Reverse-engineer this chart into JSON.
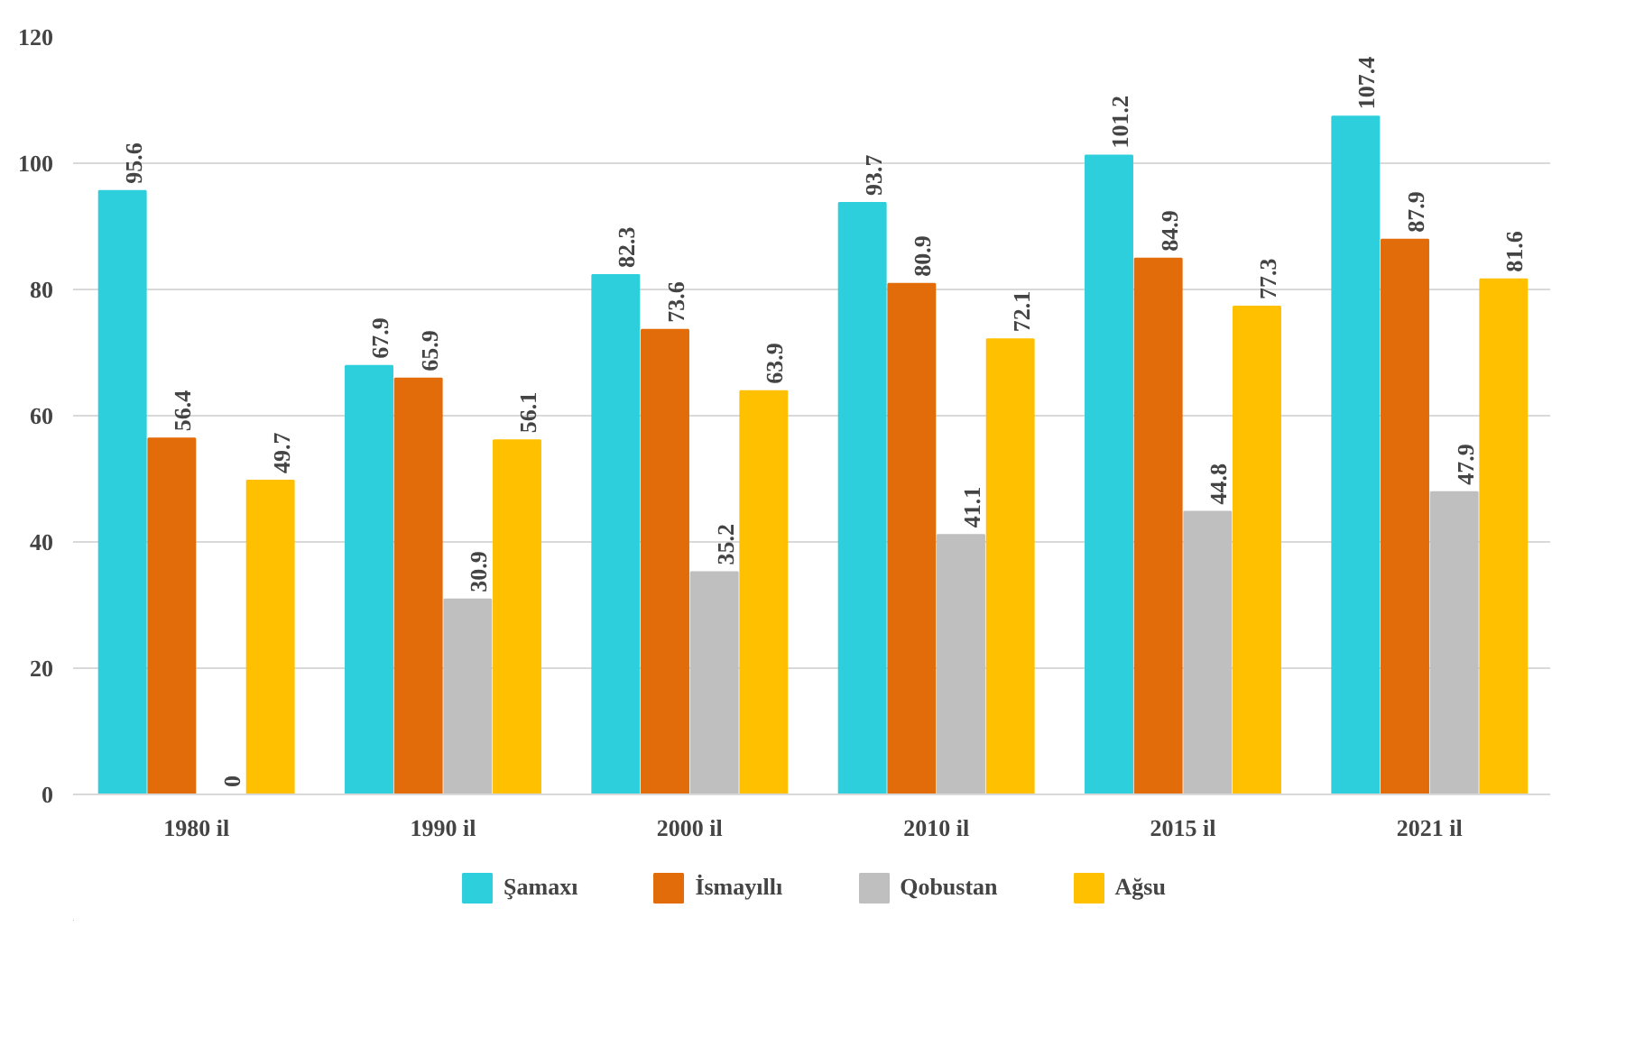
{
  "chart_data": {
    "type": "bar",
    "categories": [
      "1980 il",
      "1990 il",
      "2000 il",
      "2010 il",
      "2015 il",
      "2021 il"
    ],
    "series": [
      {
        "name": "Şamaxı",
        "color": "#2ecfdc",
        "values": [
          95.6,
          67.9,
          82.3,
          93.7,
          101.2,
          107.4
        ]
      },
      {
        "name": "İsmayıllı",
        "color": "#e36c0a",
        "values": [
          56.4,
          65.9,
          73.6,
          80.9,
          84.9,
          87.9
        ]
      },
      {
        "name": "Qobustan",
        "color": "#bfbfbf",
        "values": [
          0,
          30.9,
          35.2,
          41.1,
          44.8,
          47.9
        ]
      },
      {
        "name": "Ağsu",
        "color": "#ffc000",
        "values": [
          49.7,
          56.1,
          63.9,
          72.1,
          77.3,
          81.6
        ]
      }
    ],
    "ylim": [
      0,
      120
    ],
    "yticks": [
      0,
      20,
      40,
      60,
      80,
      100,
      120
    ],
    "grid": "y",
    "legend": "bottom",
    "data_labels": true
  }
}
